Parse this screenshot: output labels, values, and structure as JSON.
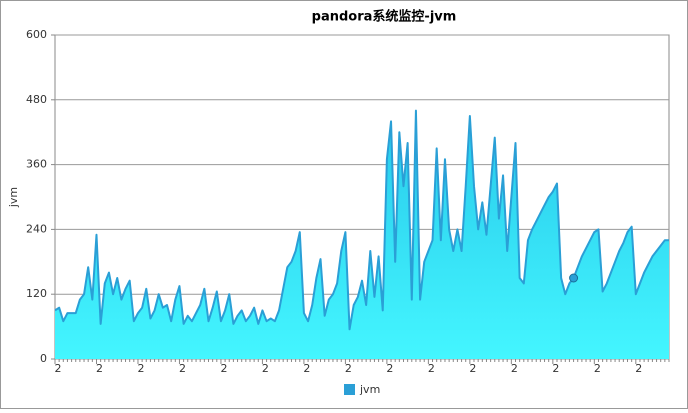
{
  "chart_data": {
    "type": "area",
    "title": "pandora系统监控-jvm",
    "y_label": "jvm",
    "ylim": [
      0,
      600
    ],
    "yticks": [
      0,
      120,
      240,
      360,
      480,
      600
    ],
    "grid": true,
    "legend": "bottom",
    "categories": [
      "2",
      null,
      null,
      null,
      null,
      null,
      null,
      null,
      null,
      null,
      "2",
      null,
      null,
      null,
      null,
      null,
      null,
      null,
      null,
      null,
      "2",
      null,
      null,
      null,
      null,
      null,
      null,
      null,
      null,
      null,
      "2",
      null,
      null,
      null,
      null,
      null,
      null,
      null,
      null,
      null,
      "2",
      null,
      null,
      null,
      null,
      null,
      null,
      null,
      null,
      null,
      "2",
      null,
      null,
      null,
      null,
      null,
      null,
      null,
      null,
      null,
      "2",
      null,
      null,
      null,
      null,
      null,
      null,
      null,
      null,
      null,
      "2",
      null,
      null,
      null,
      null,
      null,
      null,
      null,
      null,
      null,
      "2",
      null,
      null,
      null,
      null,
      null,
      null,
      null,
      null,
      null,
      "2",
      null,
      null,
      null,
      null,
      null,
      null,
      null,
      null,
      null,
      "2",
      null,
      null,
      null,
      null,
      null,
      null,
      null,
      null,
      null,
      "2",
      null,
      null,
      null,
      null,
      null,
      null,
      null,
      null,
      null,
      "2",
      null,
      null,
      null,
      null,
      null,
      null,
      null,
      null,
      null,
      "2",
      null,
      null,
      null,
      null,
      null,
      null,
      null,
      null,
      null,
      "2",
      null,
      null,
      null,
      null,
      null,
      null,
      null,
      null
    ],
    "series": [
      {
        "name": "jvm",
        "color": "#2a9fd6",
        "values": [
          90,
          95,
          70,
          85,
          85,
          85,
          110,
          120,
          170,
          110,
          230,
          65,
          140,
          160,
          120,
          150,
          110,
          130,
          145,
          70,
          85,
          95,
          130,
          75,
          90,
          120,
          95,
          100,
          70,
          110,
          135,
          65,
          80,
          70,
          85,
          100,
          130,
          70,
          95,
          125,
          70,
          90,
          120,
          65,
          80,
          90,
          70,
          80,
          95,
          65,
          90,
          70,
          75,
          70,
          90,
          130,
          170,
          180,
          200,
          235,
          85,
          70,
          100,
          150,
          185,
          80,
          110,
          120,
          140,
          200,
          235,
          55,
          100,
          115,
          145,
          100,
          200,
          115,
          190,
          90,
          370,
          440,
          180,
          420,
          320,
          400,
          110,
          460,
          110,
          180,
          200,
          220,
          390,
          220,
          370,
          240,
          200,
          240,
          200,
          320,
          450,
          320,
          240,
          290,
          230,
          320,
          410,
          260,
          340,
          200,
          300,
          400,
          150,
          140,
          220,
          240,
          255,
          270,
          285,
          300,
          310,
          325,
          150,
          120,
          140,
          150,
          170,
          190,
          205,
          220,
          235,
          240,
          125,
          140,
          160,
          180,
          200,
          215,
          235,
          245,
          120,
          140,
          160,
          175,
          190,
          200,
          210,
          220,
          220
        ]
      }
    ],
    "highlight_index": 125
  }
}
